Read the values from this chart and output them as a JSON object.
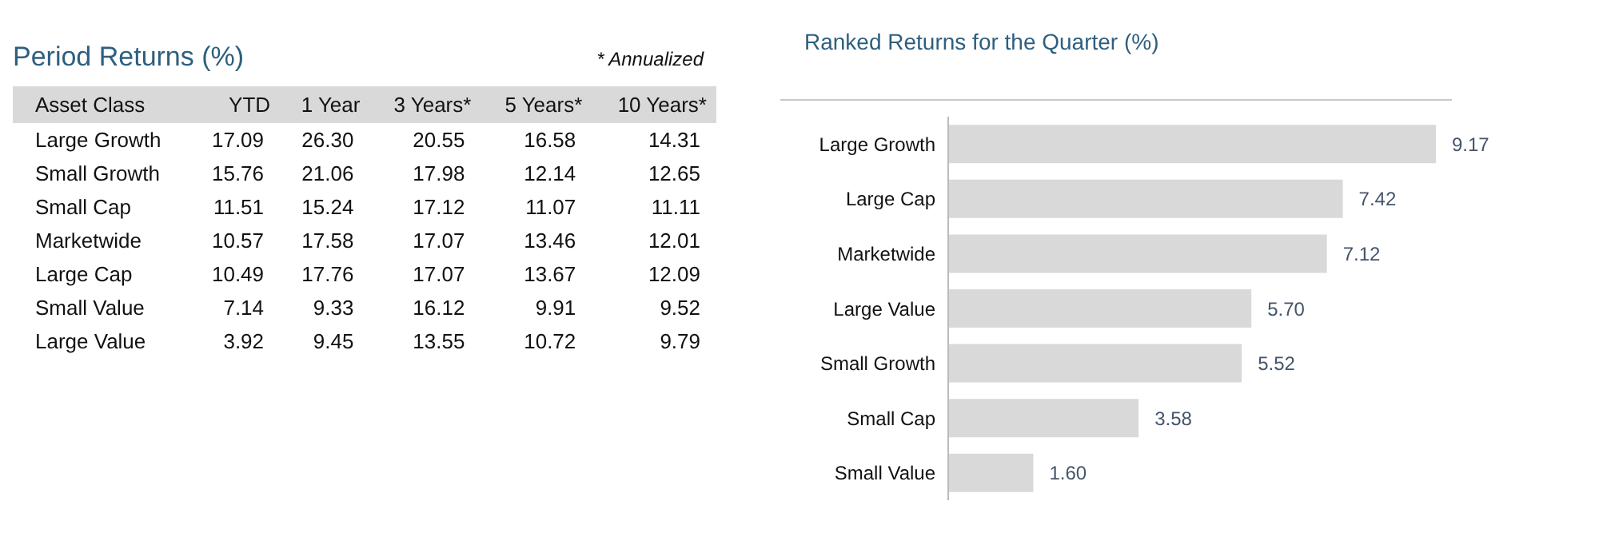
{
  "chart_data": [
    {
      "type": "other",
      "title": "Period Returns (%)",
      "annotations": [
        "* Annualized"
      ],
      "ylabel": "Asset Class",
      "categories": [
        "Large Growth",
        "Small Growth",
        "Small Cap",
        "Marketwide",
        "Large Cap",
        "Small Value",
        "Large Value"
      ],
      "series": [
        {
          "name": "YTD",
          "values": [
            17.09,
            15.76,
            11.51,
            10.57,
            10.49,
            7.14,
            3.92
          ],
          "value_labels": [
            "17.09",
            "15.76",
            "11.51",
            "10.57",
            "10.49",
            "7.14",
            "3.92"
          ]
        },
        {
          "name": "1 Year",
          "values": [
            26.3,
            21.06,
            15.24,
            17.58,
            17.76,
            9.33,
            9.45
          ],
          "value_labels": [
            "26.30",
            "21.06",
            "15.24",
            "17.58",
            "17.76",
            "9.33",
            "9.45"
          ]
        },
        {
          "name": "3 Years*",
          "values": [
            20.55,
            17.98,
            17.12,
            17.07,
            17.07,
            16.12,
            13.55
          ],
          "value_labels": [
            "20.55",
            "17.98",
            "17.12",
            "17.07",
            "17.07",
            "16.12",
            "13.55"
          ]
        },
        {
          "name": "5 Years*",
          "values": [
            16.58,
            12.14,
            11.07,
            13.46,
            13.67,
            9.91,
            10.72
          ],
          "value_labels": [
            "16.58",
            "12.14",
            "11.07",
            "13.46",
            "13.67",
            "9.91",
            "10.72"
          ]
        },
        {
          "name": "10 Years*",
          "values": [
            14.31,
            12.65,
            11.11,
            12.01,
            12.09,
            9.52,
            9.79
          ],
          "value_labels": [
            "14.31",
            "12.65",
            "11.11",
            "12.01",
            "12.09",
            "9.52",
            "9.79"
          ]
        }
      ]
    },
    {
      "type": "bar",
      "orientation": "horizontal",
      "title": "Ranked Returns for the Quarter (%)",
      "categories": [
        "Large Growth",
        "Large Cap",
        "Marketwide",
        "Large Value",
        "Small Growth",
        "Small Cap",
        "Small Value"
      ],
      "values": [
        9.17,
        7.42,
        7.12,
        5.7,
        5.52,
        3.58,
        1.6
      ],
      "value_labels": [
        "9.17",
        "7.42",
        "7.12",
        "5.70",
        "5.52",
        "3.58",
        "1.60"
      ],
      "color": "#d9d9d9"
    }
  ]
}
